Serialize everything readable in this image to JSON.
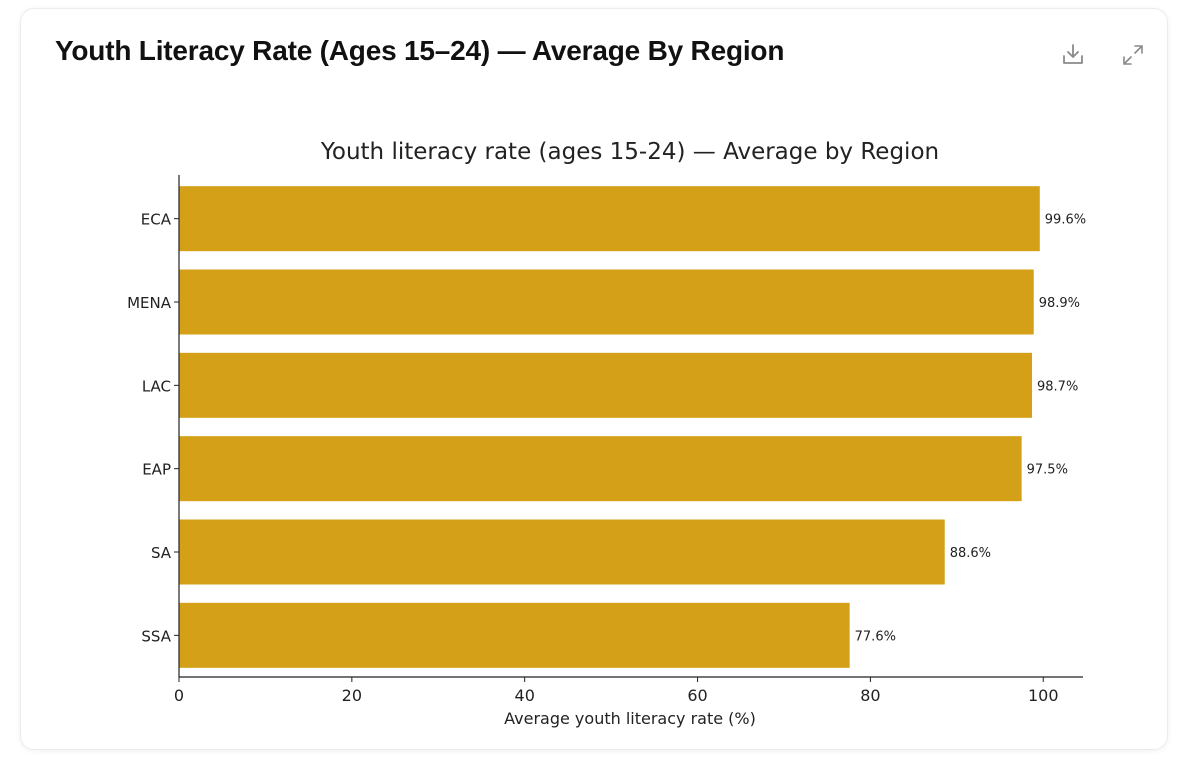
{
  "header": {
    "title": "Youth Literacy Rate (Ages 15–24) — Average By Region",
    "download_icon": "download-icon",
    "expand_icon": "expand-icon"
  },
  "chart_data": {
    "type": "bar",
    "orientation": "horizontal",
    "title": "Youth literacy rate (ages 15-24) — Average by Region",
    "xlabel": "Average youth literacy rate (%)",
    "ylabel": "",
    "categories": [
      "ECA",
      "MENA",
      "LAC",
      "EAP",
      "SA",
      "SSA"
    ],
    "values": [
      99.6,
      98.9,
      98.7,
      97.5,
      88.6,
      77.6
    ],
    "data_labels": [
      "99.6%",
      "98.9%",
      "98.7%",
      "97.5%",
      "88.6%",
      "77.6%"
    ],
    "xlim": [
      0,
      104.6
    ],
    "xticks": [
      0,
      20,
      40,
      60,
      80,
      100
    ],
    "bar_color": "#D4A017",
    "grid": false,
    "legend": "none"
  }
}
